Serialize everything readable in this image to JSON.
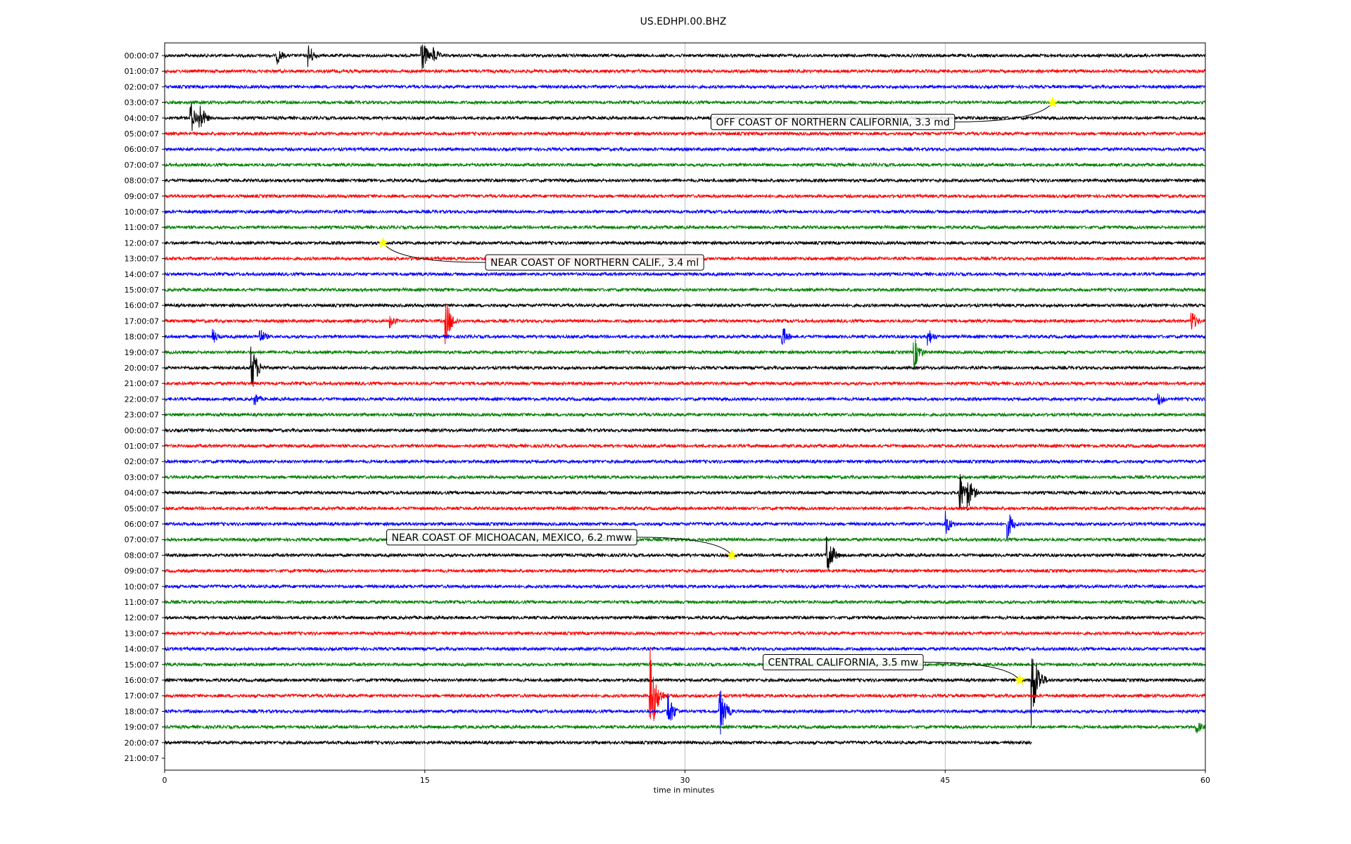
{
  "chart_data": {
    "type": "line",
    "title": "US.EDHPI.00.BHZ",
    "xlabel": "time in minutes",
    "xlim": [
      0,
      60
    ],
    "xticks": [
      "0",
      "15",
      "30",
      "45",
      "60"
    ],
    "grid": "vertical lines at x ticks",
    "row_labels": [
      "00:00:07",
      "01:00:07",
      "02:00:07",
      "03:00:07",
      "04:00:07",
      "05:00:07",
      "06:00:07",
      "07:00:07",
      "08:00:07",
      "09:00:07",
      "10:00:07",
      "11:00:07",
      "12:00:07",
      "13:00:07",
      "14:00:07",
      "15:00:07",
      "16:00:07",
      "17:00:07",
      "18:00:07",
      "19:00:07",
      "20:00:07",
      "21:00:07",
      "22:00:07",
      "23:00:07",
      "00:00:07",
      "01:00:07",
      "02:00:07",
      "03:00:07",
      "04:00:07",
      "05:00:07",
      "06:00:07",
      "07:00:07",
      "08:00:07",
      "09:00:07",
      "10:00:07",
      "11:00:07",
      "12:00:07",
      "13:00:07",
      "14:00:07",
      "15:00:07",
      "16:00:07",
      "17:00:07",
      "18:00:07",
      "19:00:07",
      "20:00:07",
      "21:00:07"
    ],
    "trace_colors": [
      "#000000",
      "#ff0000",
      "#0000ff",
      "#008000"
    ],
    "last_trace_end_minutes": 50,
    "bursts": [
      {
        "row": 0,
        "t": 6.5,
        "amp": 0.6
      },
      {
        "row": 0,
        "t": 8.3,
        "amp": 0.8
      },
      {
        "row": 0,
        "t": 14.8,
        "amp": 1.3
      },
      {
        "row": 0,
        "t": 15.5,
        "amp": 0.6
      },
      {
        "row": 4,
        "t": 1.5,
        "amp": 1.2
      },
      {
        "row": 4,
        "t": 2.0,
        "amp": 1.1
      },
      {
        "row": 17,
        "t": 13.0,
        "amp": 0.5
      },
      {
        "row": 17,
        "t": 16.2,
        "amp": 1.6
      },
      {
        "row": 17,
        "t": 59.2,
        "amp": 0.8
      },
      {
        "row": 18,
        "t": 2.8,
        "amp": 0.5
      },
      {
        "row": 18,
        "t": 5.5,
        "amp": 0.6
      },
      {
        "row": 18,
        "t": 35.6,
        "amp": 0.8
      },
      {
        "row": 18,
        "t": 44.0,
        "amp": 0.7
      },
      {
        "row": 19,
        "t": 43.2,
        "amp": 1.2
      },
      {
        "row": 20,
        "t": 5.0,
        "amp": 1.8
      },
      {
        "row": 22,
        "t": 5.2,
        "amp": 0.5
      },
      {
        "row": 22,
        "t": 57.3,
        "amp": 0.5
      },
      {
        "row": 28,
        "t": 45.8,
        "amp": 1.6
      },
      {
        "row": 28,
        "t": 46.3,
        "amp": 1.2
      },
      {
        "row": 30,
        "t": 45.0,
        "amp": 0.9
      },
      {
        "row": 30,
        "t": 48.6,
        "amp": 1.0
      },
      {
        "row": 32,
        "t": 38.2,
        "amp": 1.6
      },
      {
        "row": 40,
        "t": 50.0,
        "amp": 3.0
      },
      {
        "row": 41,
        "t": 28.0,
        "amp": 3.2
      },
      {
        "row": 42,
        "t": 29.0,
        "amp": 1.4
      },
      {
        "row": 42,
        "t": 32.0,
        "amp": 1.8
      },
      {
        "row": 43,
        "t": 59.5,
        "amp": 0.5
      }
    ],
    "annotations": [
      {
        "text": "OFF COAST OF NORTHERN CALIFORNIA, 3.3 md",
        "row": 3,
        "t": 51.2,
        "label_t": 31.5,
        "label_row": 4.25
      },
      {
        "text": "NEAR COAST OF NORTHERN CALIF., 3.4 ml",
        "row": 12,
        "t": 12.6,
        "label_t": 18.5,
        "label_row": 13.25
      },
      {
        "text": "NEAR COAST OF MICHOACAN, MEXICO, 6.2 mww",
        "row": 32,
        "t": 32.7,
        "label_t": 12.8,
        "label_row": 30.85
      },
      {
        "text": "CENTRAL CALIFORNIA, 3.5 mw",
        "row": 40,
        "t": 49.3,
        "label_t": 34.5,
        "label_row": 38.85
      }
    ],
    "marker_color": "#ffff00"
  }
}
